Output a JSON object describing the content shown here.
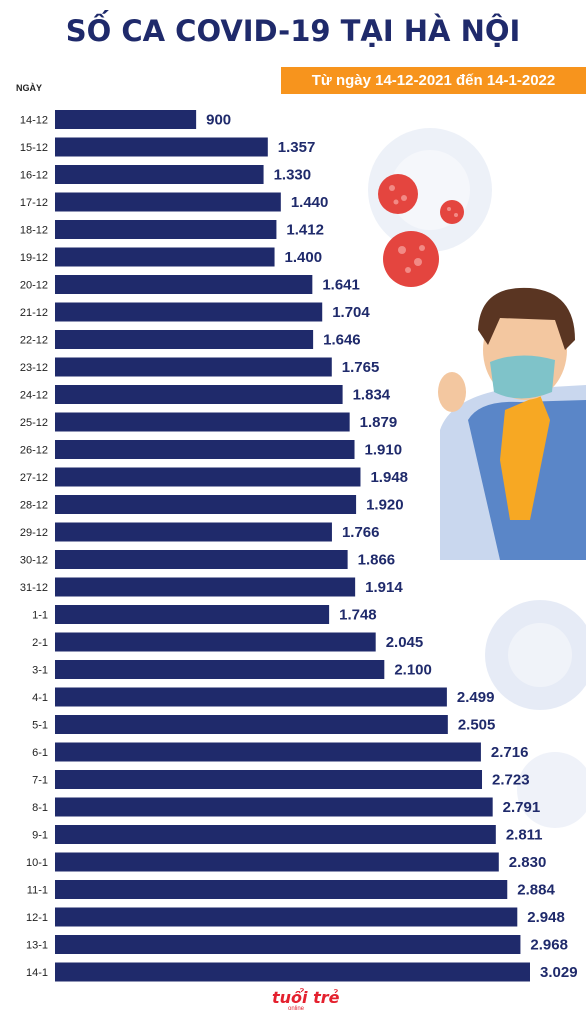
{
  "title": "SỐ CA COVID-19 TẠI HÀ NỘI",
  "subtitle": "Từ ngày 14-12-2021 đến 14-1-2022",
  "logo": "tuổi trẻ",
  "logo_sub": "online",
  "colors": {
    "bar": "#1f2a6b",
    "title": "#1f2a6b",
    "subtitle_bg": "#f7941d",
    "virus_red": "#e4453f",
    "virus_blue": "#c9d4ea"
  },
  "chart_data": {
    "type": "bar",
    "orientation": "horizontal",
    "title": "SỐ CA COVID-19 TẠI HÀ NỘI",
    "ylabel": "NGÀY",
    "xlabel": "",
    "grid": false,
    "categories": [
      "14-12",
      "15-12",
      "16-12",
      "17-12",
      "18-12",
      "19-12",
      "20-12",
      "21-12",
      "22-12",
      "23-12",
      "24-12",
      "25-12",
      "26-12",
      "27-12",
      "28-12",
      "29-12",
      "30-12",
      "31-12",
      "1-1",
      "2-1",
      "3-1",
      "4-1",
      "5-1",
      "6-1",
      "7-1",
      "8-1",
      "9-1",
      "10-1",
      "11-1",
      "12-1",
      "13-1",
      "14-1"
    ],
    "values": [
      900,
      1357,
      1330,
      1440,
      1412,
      1400,
      1641,
      1704,
      1646,
      1765,
      1834,
      1879,
      1910,
      1948,
      1920,
      1766,
      1866,
      1914,
      1748,
      2045,
      2100,
      2499,
      2505,
      2716,
      2723,
      2791,
      2811,
      2830,
      2884,
      2948,
      2968,
      3029
    ],
    "labels": [
      "900",
      "1.357",
      "1.330",
      "1.440",
      "1.412",
      "1.400",
      "1.641",
      "1.704",
      "1.646",
      "1.765",
      "1.834",
      "1.879",
      "1.910",
      "1.948",
      "1.920",
      "1.766",
      "1.866",
      "1.914",
      "1.748",
      "2.045",
      "2.100",
      "2.499",
      "2.505",
      "2.716",
      "2.723",
      "2.791",
      "2.811",
      "2.830",
      "2.884",
      "2.948",
      "2.968",
      "3.029"
    ]
  }
}
